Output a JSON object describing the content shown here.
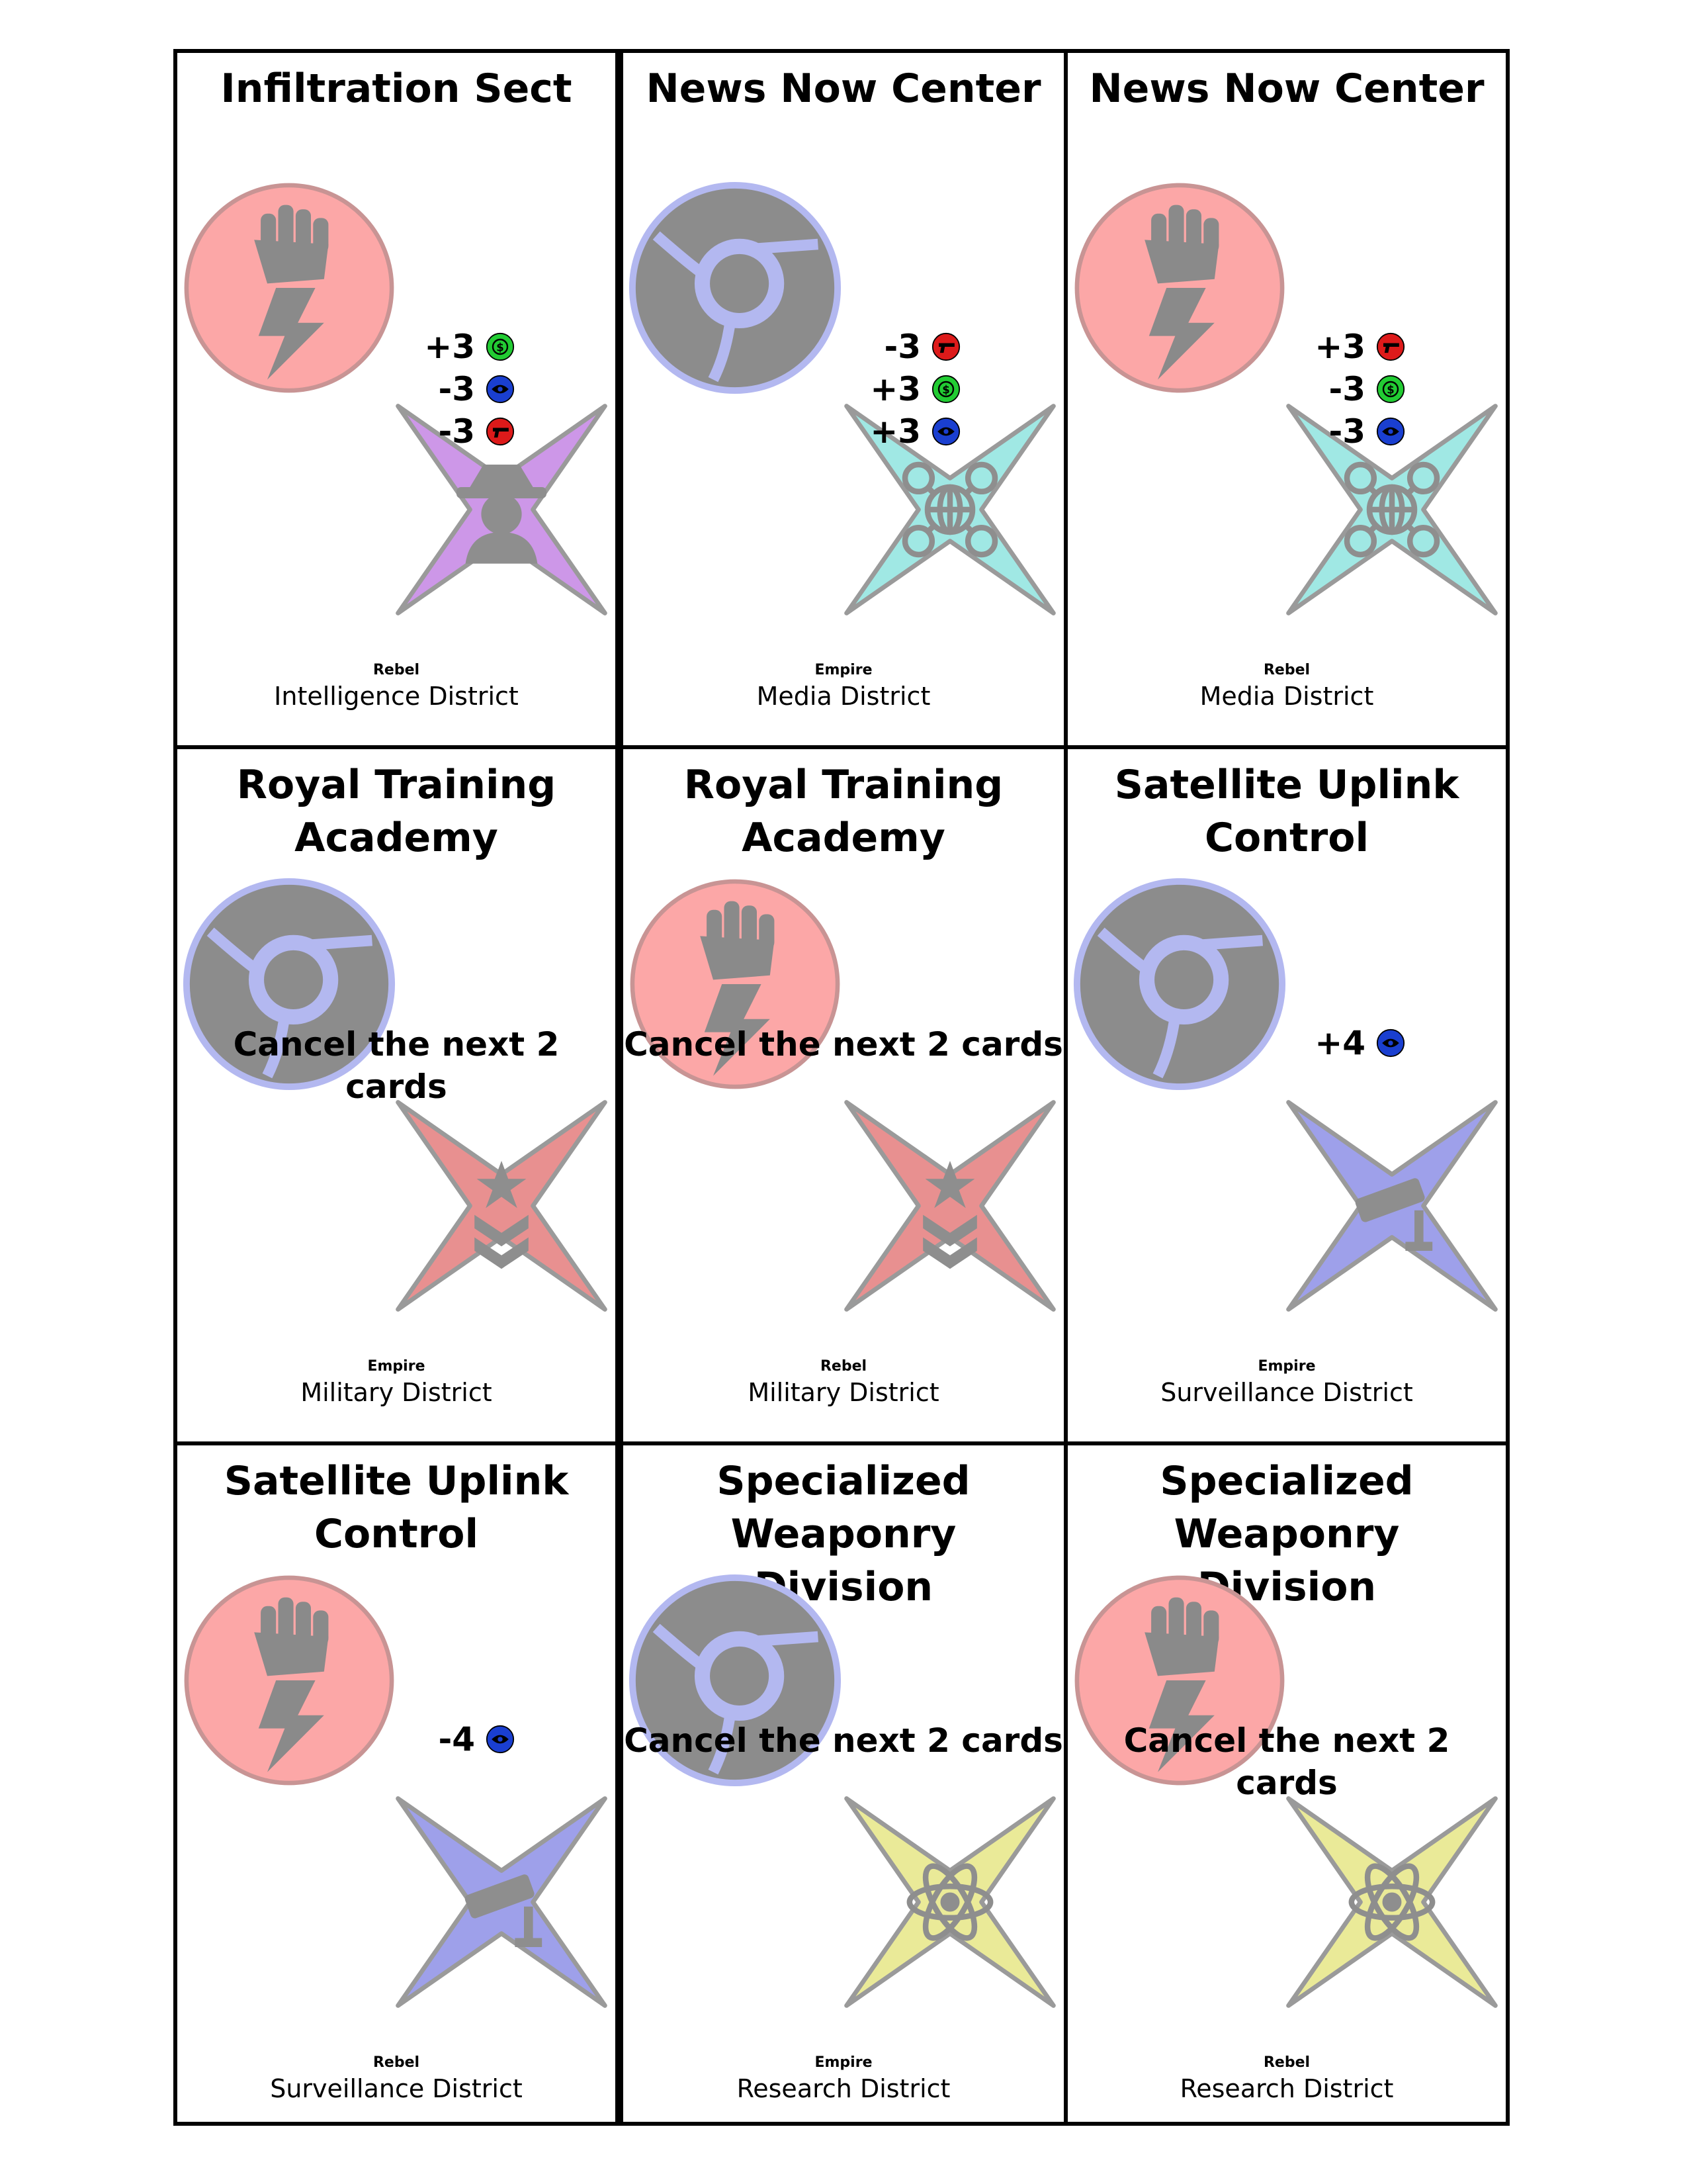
{
  "colors": {
    "rebel_circle": "#fca7a7",
    "empire_circle": "#8c8c8c",
    "empire_ring": "#b3b8f0",
    "intelligence": "#cd97e8",
    "media": "#a0e8e4",
    "military": "#e89090",
    "surveillance": "#9ea0ea",
    "research": "#eaea98",
    "money": "#22cc33",
    "eye": "#1a3fd0",
    "gun": "#dd1a1a"
  },
  "cards": [
    {
      "title": "Infiltration  Sect",
      "faction": "Rebel",
      "district": "Intelligence  District",
      "faction_icon": "rebel-fist-icon",
      "district_icon": "spy-icon",
      "district_type": "intelligence",
      "effects": [
        {
          "value": "+3",
          "icon": "money-icon"
        },
        {
          "value": "-3",
          "icon": "eye-icon"
        },
        {
          "value": "-3",
          "icon": "gun-icon"
        }
      ],
      "cancel_text": ""
    },
    {
      "title": "News  Now  Center",
      "faction": "Empire",
      "district": "Media  District",
      "faction_icon": "empire-emblem-icon",
      "district_icon": "network-globe-icon",
      "district_type": "media",
      "effects": [
        {
          "value": "-3",
          "icon": "gun-icon"
        },
        {
          "value": "+3",
          "icon": "money-icon"
        },
        {
          "value": "+3",
          "icon": "eye-icon"
        }
      ],
      "cancel_text": ""
    },
    {
      "title": "News  Now  Center",
      "faction": "Rebel",
      "district": "Media  District",
      "faction_icon": "rebel-fist-icon",
      "district_icon": "network-globe-icon",
      "district_type": "media",
      "effects": [
        {
          "value": "+3",
          "icon": "gun-icon"
        },
        {
          "value": "-3",
          "icon": "money-icon"
        },
        {
          "value": "-3",
          "icon": "eye-icon"
        }
      ],
      "cancel_text": ""
    },
    {
      "title": "Royal  Training\nAcademy",
      "faction": "Empire",
      "district": "Military  District",
      "faction_icon": "empire-emblem-icon",
      "district_icon": "military-rank-icon",
      "district_type": "military",
      "effects": [],
      "cancel_text": "Cancel  the  next  2  cards"
    },
    {
      "title": "Royal  Training\nAcademy",
      "faction": "Rebel",
      "district": "Military  District",
      "faction_icon": "rebel-fist-icon",
      "district_icon": "military-rank-icon",
      "district_type": "military",
      "effects": [],
      "cancel_text": "Cancel  the  next  2  cards"
    },
    {
      "title": "Satellite  Uplink\nControl",
      "faction": "Empire",
      "district": "Surveillance  District",
      "faction_icon": "empire-emblem-icon",
      "district_icon": "security-camera-icon",
      "district_type": "surveillance",
      "effects": [
        {
          "value": "+4",
          "icon": "eye-icon"
        }
      ],
      "cancel_text": ""
    },
    {
      "title": "Satellite  Uplink\nControl",
      "faction": "Rebel",
      "district": "Surveillance  District",
      "faction_icon": "rebel-fist-icon",
      "district_icon": "security-camera-icon",
      "district_type": "surveillance",
      "effects": [
        {
          "value": "-4",
          "icon": "eye-icon"
        }
      ],
      "cancel_text": ""
    },
    {
      "title": "Specialized\nWeaponry  Division",
      "faction": "Empire",
      "district": "Research  District",
      "faction_icon": "empire-emblem-icon",
      "district_icon": "atom-icon",
      "district_type": "research",
      "effects": [],
      "cancel_text": "Cancel  the  next  2  cards"
    },
    {
      "title": "Specialized\nWeaponry  Division",
      "faction": "Rebel",
      "district": "Research  District",
      "faction_icon": "rebel-fist-icon",
      "district_icon": "atom-icon",
      "district_type": "research",
      "effects": [],
      "cancel_text": "Cancel  the  next  2  cards"
    }
  ]
}
